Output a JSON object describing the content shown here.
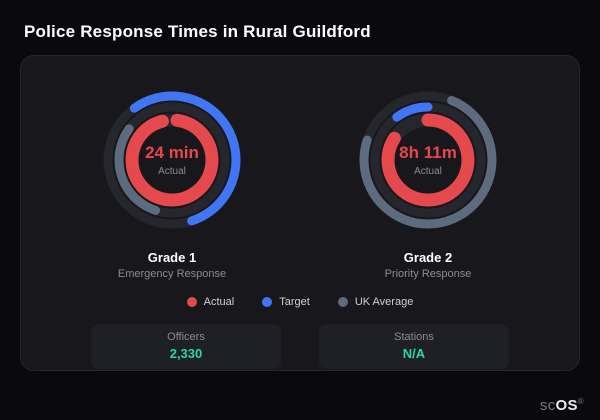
{
  "page": {
    "title": "Police Response Times in Rural Guildford"
  },
  "colors": {
    "actual": "#e5484d",
    "target": "#4076f5",
    "uk_average": "#5c6b7d",
    "track": "#26262d",
    "stat_value": "#2dd4a4"
  },
  "chart_data": [
    {
      "type": "gauge",
      "title": "Grade 1",
      "subtitle": "Emergency Response",
      "center_value": "24 min",
      "center_label": "Actual",
      "rings": [
        {
          "series": "Target",
          "color": "#4076f5",
          "r": 64,
          "w": 9,
          "start": 0.9,
          "fraction": 0.55
        },
        {
          "series": "UK Average",
          "color": "#5c6b7d",
          "r": 53,
          "w": 9,
          "start": 0.55,
          "fraction": 0.3
        },
        {
          "series": "Actual",
          "color": "#e5484d",
          "r": 40,
          "w": 13,
          "start": 0.02,
          "fraction": 0.94
        }
      ]
    },
    {
      "type": "gauge",
      "title": "Grade 2",
      "subtitle": "Priority Response",
      "center_value": "8h 11m",
      "center_label": "Actual",
      "rings": [
        {
          "series": "UK Average",
          "color": "#5c6b7d",
          "r": 64,
          "w": 9,
          "start": 0.06,
          "fraction": 0.74
        },
        {
          "series": "Target",
          "color": "#4076f5",
          "r": 53,
          "w": 9,
          "start": 0.9,
          "fraction": 0.1
        },
        {
          "series": "Actual",
          "color": "#e5484d",
          "r": 40,
          "w": 13,
          "start": 0.0,
          "fraction": 0.84
        }
      ]
    }
  ],
  "legend": [
    {
      "label": "Actual",
      "color": "#e5484d"
    },
    {
      "label": "Target",
      "color": "#4076f5"
    },
    {
      "label": "UK Average",
      "color": "#5c6b7d"
    }
  ],
  "stats": [
    {
      "label": "Officers",
      "value": "2,330"
    },
    {
      "label": "Stations",
      "value": "N/A"
    }
  ],
  "brand": {
    "prefix": "sc",
    "suffix": "OS",
    "reg": "®"
  }
}
